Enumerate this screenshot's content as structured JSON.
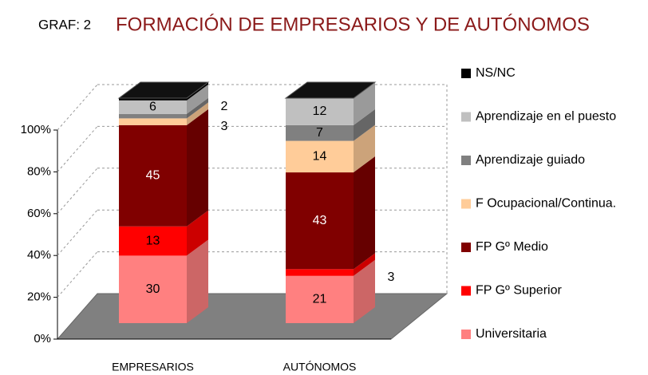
{
  "chart_data": {
    "type": "bar",
    "stacked": true,
    "three_d": true,
    "label": "GRAF: 2",
    "title": "FORMACIÓN DE EMPRESARIOS Y DE AUTÓNOMOS",
    "categories": [
      "EMPRESARIOS",
      "AUTÓNOMOS"
    ],
    "series": [
      {
        "name": "Universitaria",
        "color": "#ff8080",
        "values": [
          30,
          21
        ],
        "value_labels": [
          "30",
          "21"
        ]
      },
      {
        "name": "FP Gº Superior",
        "color": "#ff0000",
        "values": [
          13,
          3
        ],
        "value_labels": [
          "13",
          "3"
        ]
      },
      {
        "name": "FP Gº Medio",
        "color": "#800000",
        "values": [
          45,
          43
        ],
        "value_labels": [
          "45",
          "43"
        ]
      },
      {
        "name": "F Ocupacional/Continua.",
        "color": "#ffcc99",
        "values": [
          3,
          14
        ],
        "value_labels": [
          "3",
          "14"
        ]
      },
      {
        "name": "Aprendizaje guiado",
        "color": "#808080",
        "values": [
          2,
          7
        ],
        "value_labels": [
          "2",
          "7"
        ]
      },
      {
        "name": "Aprendizaje en el puesto",
        "color": "#c0c0c0",
        "values": [
          6,
          12
        ],
        "value_labels": [
          "6",
          "12"
        ]
      },
      {
        "name": "NS/NC",
        "color": "#000000",
        "values": [
          1,
          0
        ],
        "value_labels": [
          null,
          null
        ]
      }
    ],
    "ylim": [
      0,
      100
    ],
    "yticks": [
      {
        "value": 0,
        "label": "0%"
      },
      {
        "value": 20,
        "label": "20%"
      },
      {
        "value": 40,
        "label": "40%"
      },
      {
        "value": 60,
        "label": "60%"
      },
      {
        "value": 80,
        "label": "80%"
      },
      {
        "value": 100,
        "label": "100%"
      }
    ],
    "grid": true,
    "legend": "right"
  }
}
